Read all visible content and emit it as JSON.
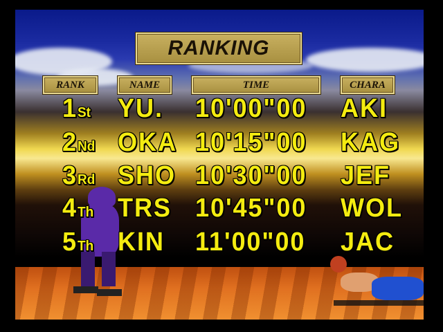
{
  "title": "RANKING",
  "headers": {
    "rank": "RANK",
    "name": "NAME",
    "time": "TIME",
    "chara": "CHARA"
  },
  "rows": [
    {
      "rank": "1",
      "suffix": "St",
      "name": "YU.",
      "time": "10'00\"00",
      "chara": "AKI"
    },
    {
      "rank": "2",
      "suffix": "Nd",
      "name": "OKA",
      "time": "10'15\"00",
      "chara": "KAG"
    },
    {
      "rank": "3",
      "suffix": "Rd",
      "name": "SHO",
      "time": "10'30\"00",
      "chara": "JEF"
    },
    {
      "rank": "4",
      "suffix": "Th",
      "name": "TRS",
      "time": "10'45\"00",
      "chara": "WOL"
    },
    {
      "rank": "5",
      "suffix": "Th",
      "name": "KIN",
      "time": "11'00\"00",
      "chara": "JAC"
    }
  ],
  "colors": {
    "text": "#f4ec10",
    "plate": "#b8a050"
  }
}
